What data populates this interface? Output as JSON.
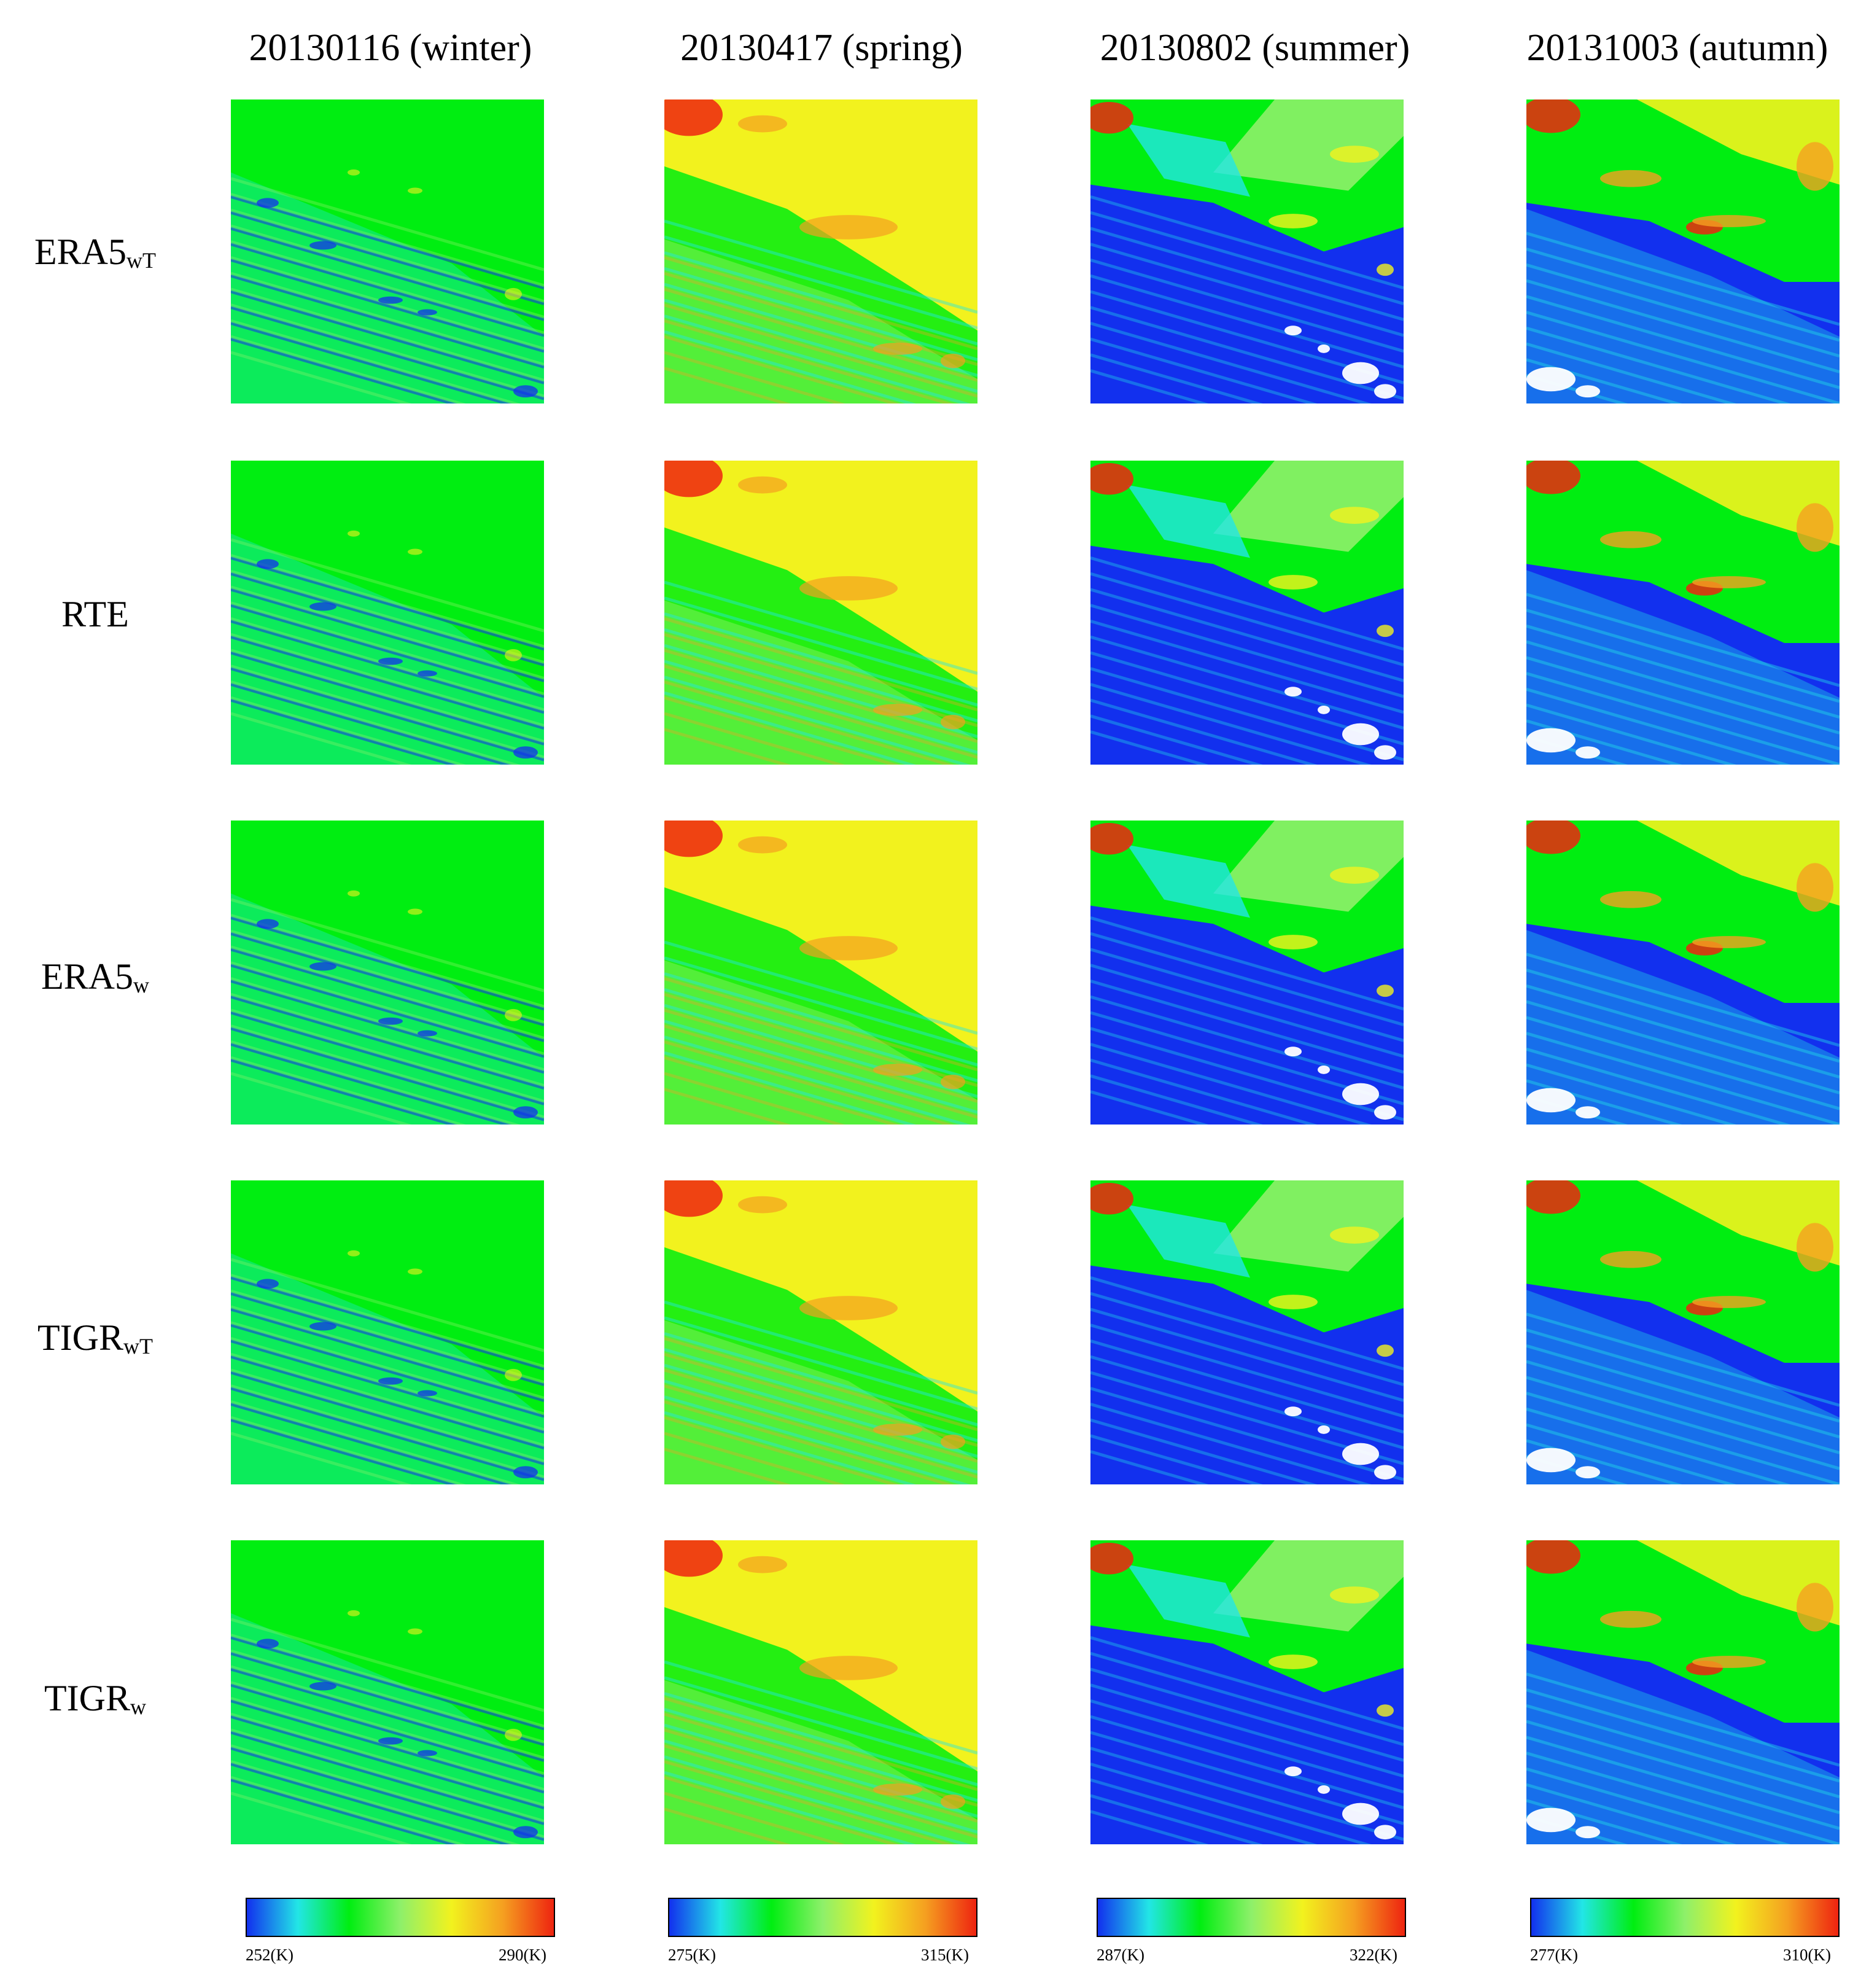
{
  "columns": [
    {
      "title": "20130116 (winter)",
      "season": "winter",
      "colorbar": {
        "min": "252(K)",
        "max": "290(K)"
      }
    },
    {
      "title": "20130417 (spring)",
      "season": "spring",
      "colorbar": {
        "min": "275(K)",
        "max": "315(K)"
      }
    },
    {
      "title": "20130802 (summer)",
      "season": "summer",
      "colorbar": {
        "min": "287(K)",
        "max": "322(K)"
      }
    },
    {
      "title": "20131003 (autumn)",
      "season": "autumn",
      "colorbar": {
        "min": "277(K)",
        "max": "310(K)"
      }
    }
  ],
  "rows": [
    {
      "base": "ERA5",
      "sub": "wT"
    },
    {
      "base": "RTE",
      "sub": ""
    },
    {
      "base": "ERA5",
      "sub": "w"
    },
    {
      "base": "TIGR",
      "sub": "wT"
    },
    {
      "base": "TIGR",
      "sub": "w"
    }
  ],
  "colors": {
    "blue": "#1230ee",
    "cyan": "#22e6e6",
    "green": "#00ee11",
    "light_green": "#8ef06a",
    "yellow": "#f2f21e",
    "orange": "#f5a020",
    "red": "#ee2410",
    "white": "#ffffff",
    "purple": "#7a28d8"
  }
}
